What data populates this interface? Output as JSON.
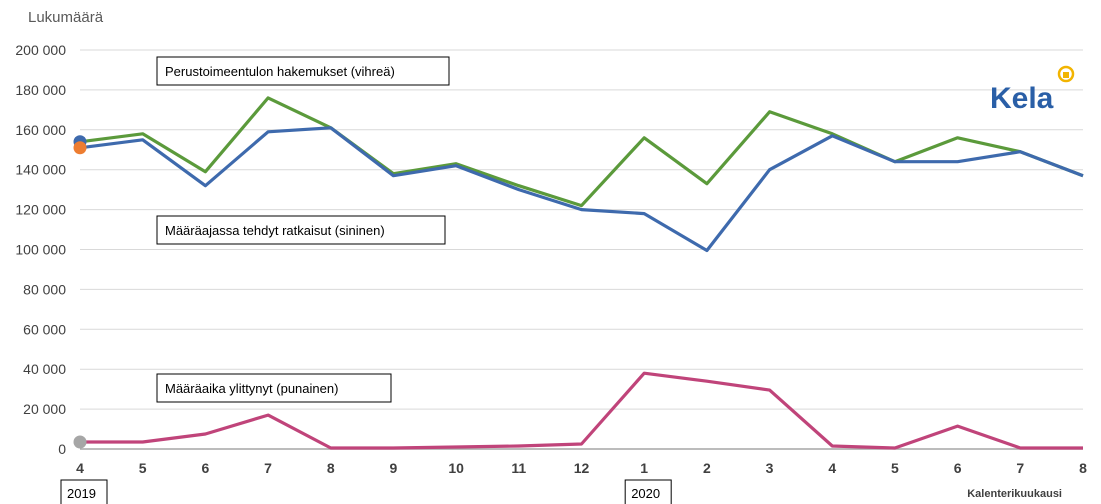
{
  "chart_data": {
    "type": "line",
    "ylabel": "Lukumäärä",
    "xlabel": "Kalenterikuukausi",
    "ylim": [
      0,
      200000
    ],
    "yticks": [
      0,
      20000,
      40000,
      60000,
      80000,
      100000,
      120000,
      140000,
      160000,
      180000,
      200000
    ],
    "ytick_labels": [
      "0",
      "20 000",
      "40 000",
      "60 000",
      "80 000",
      "100 000",
      "120 000",
      "140 000",
      "160 000",
      "180 000",
      "200 000"
    ],
    "grid": true,
    "categories": [
      "4",
      "5",
      "6",
      "7",
      "8",
      "9",
      "10",
      "11",
      "12",
      "1",
      "2",
      "3",
      "4",
      "5",
      "6",
      "7",
      "8"
    ],
    "years": [
      {
        "label": "2019",
        "start_index": 0
      },
      {
        "label": "2020",
        "start_index": 9
      }
    ],
    "series": [
      {
        "color": "#5b9a3b",
        "values": [
          154000,
          158000,
          139000,
          176000,
          161000,
          138000,
          143000,
          132000,
          122000,
          156000,
          133000,
          169000,
          158000,
          144000,
          156000,
          149000,
          137000
        ]
      },
      {
        "color": "#3e6aad",
        "values": [
          151000,
          155000,
          132000,
          159000,
          161000,
          137000,
          142000,
          130000,
          120000,
          118000,
          99500,
          140000,
          157000,
          144000,
          144000,
          149000,
          137000
        ]
      },
      {
        "color": "#c0447a",
        "values": [
          3500,
          3500,
          7500,
          17000,
          500,
          500,
          1000,
          1500,
          2500,
          38000,
          34000,
          29500,
          1500,
          500,
          11500,
          500,
          500
        ]
      }
    ],
    "start_markers": [
      {
        "value": 154000,
        "color": "#3e6aad"
      },
      {
        "value": 151000,
        "color": "#ed7d31"
      },
      {
        "value": 3500,
        "color": "#a6a6a6"
      }
    ],
    "annotations": [
      "Perustoimeentulon hakemukset  (vihreä)",
      "Määräajassa tehdyt ratkaisut (sininen)",
      "Määräaika ylittynyt (punainen)"
    ]
  },
  "logo": {
    "text": "Kela",
    "color": "#2a5fa7",
    "accent_color": "#f2b400"
  }
}
